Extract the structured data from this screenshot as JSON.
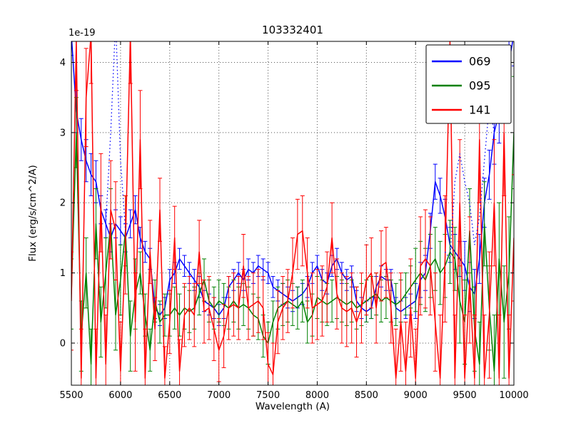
{
  "figure": {
    "title": "103332401",
    "offset_label": "1e-19",
    "xlabel": "Wavelength (A)",
    "ylabel": "Flux (erg/s/cm^2/A)"
  },
  "chart_data": {
    "type": "line",
    "title": "103332401",
    "xlabel": "Wavelength (A)",
    "ylabel": "Flux (erg/s/cm^2/A)",
    "offset_label": "1e-19",
    "xlim": [
      5500,
      10000
    ],
    "ylim": [
      -0.6,
      4.3
    ],
    "xticks": [
      5500,
      6000,
      6500,
      7000,
      7500,
      8000,
      8500,
      9000,
      9500,
      10000
    ],
    "yticks": [
      0,
      1,
      2,
      3,
      4
    ],
    "grid": {
      "on": true,
      "style": "dotted",
      "color": "#555555"
    },
    "legend": {
      "position": "upper right",
      "labels": [
        "069",
        "095",
        "141"
      ]
    },
    "x": [
      5500,
      5550,
      5600,
      5650,
      5700,
      5750,
      5800,
      5850,
      5900,
      5950,
      6000,
      6050,
      6100,
      6150,
      6200,
      6250,
      6300,
      6350,
      6400,
      6450,
      6500,
      6550,
      6600,
      6650,
      6700,
      6750,
      6800,
      6850,
      6900,
      6950,
      7000,
      7050,
      7100,
      7150,
      7200,
      7250,
      7300,
      7350,
      7400,
      7450,
      7500,
      7550,
      7600,
      7650,
      7700,
      7750,
      7800,
      7850,
      7900,
      7950,
      8000,
      8050,
      8100,
      8150,
      8200,
      8250,
      8300,
      8350,
      8400,
      8450,
      8500,
      8550,
      8600,
      8650,
      8700,
      8750,
      8800,
      8850,
      8900,
      8950,
      9000,
      9050,
      9100,
      9150,
      9200,
      9250,
      9300,
      9350,
      9400,
      9450,
      9500,
      9550,
      9600,
      9650,
      9700,
      9750,
      9800,
      9850,
      9900,
      9950,
      10000
    ],
    "series": [
      {
        "name": "069",
        "color": "#0000ff",
        "style": "solid",
        "values": [
          4.4,
          3.3,
          2.9,
          2.6,
          2.4,
          2.3,
          1.9,
          1.7,
          1.5,
          1.7,
          1.6,
          1.5,
          1.7,
          1.9,
          1.5,
          1.3,
          1.2,
          0.5,
          0.4,
          0.5,
          0.9,
          1.0,
          1.2,
          1.1,
          1.0,
          0.9,
          0.8,
          0.6,
          0.55,
          0.5,
          0.4,
          0.5,
          0.8,
          0.9,
          1.0,
          0.9,
          1.05,
          1.0,
          1.1,
          1.05,
          1.0,
          0.8,
          0.75,
          0.7,
          0.65,
          0.6,
          0.65,
          0.7,
          0.8,
          1.0,
          1.1,
          0.9,
          0.85,
          1.1,
          1.2,
          1.0,
          0.9,
          0.95,
          0.6,
          0.5,
          0.45,
          0.5,
          0.8,
          0.95,
          0.9,
          0.9,
          0.5,
          0.45,
          0.5,
          0.55,
          0.6,
          0.9,
          1.0,
          1.6,
          2.3,
          2.1,
          1.8,
          1.4,
          1.3,
          1.2,
          1.1,
          0.8,
          0.7,
          1.2,
          2.0,
          2.4,
          3.0,
          3.3,
          3.6,
          4.0,
          4.4
        ],
        "errors": [
          0.3,
          0.3,
          0.3,
          0.3,
          0.3,
          0.3,
          0.2,
          0.2,
          0.2,
          0.2,
          0.2,
          0.2,
          0.2,
          0.2,
          0.15,
          0.15,
          0.15,
          0.15,
          0.15,
          0.15,
          0.15,
          0.15,
          0.15,
          0.15,
          0.15,
          0.15,
          0.15,
          0.15,
          0.15,
          0.15,
          0.15,
          0.15,
          0.15,
          0.15,
          0.15,
          0.15,
          0.15,
          0.15,
          0.15,
          0.15,
          0.15,
          0.15,
          0.15,
          0.15,
          0.15,
          0.15,
          0.15,
          0.15,
          0.15,
          0.15,
          0.15,
          0.15,
          0.15,
          0.15,
          0.15,
          0.15,
          0.15,
          0.15,
          0.15,
          0.15,
          0.15,
          0.15,
          0.15,
          0.15,
          0.15,
          0.15,
          0.15,
          0.15,
          0.15,
          0.15,
          0.25,
          0.25,
          0.25,
          0.25,
          0.25,
          0.25,
          0.25,
          0.25,
          0.25,
          0.25,
          0.35,
          0.35,
          0.35,
          0.35,
          0.35,
          0.35,
          0.45,
          0.45,
          0.45,
          0.45,
          0.45
        ]
      },
      {
        "name": "095",
        "color": "#008000",
        "style": "solid",
        "values": [
          0.7,
          3.0,
          0.1,
          1.0,
          -0.3,
          1.7,
          0.3,
          1.0,
          1.7,
          0.4,
          0.9,
          1.6,
          0.1,
          0.7,
          1.0,
          0.4,
          -0.1,
          0.6,
          0.3,
          0.4,
          0.4,
          0.5,
          0.4,
          0.5,
          0.45,
          0.5,
          0.7,
          0.9,
          0.6,
          0.5,
          0.6,
          0.55,
          0.5,
          0.6,
          0.5,
          0.55,
          0.5,
          0.4,
          0.35,
          0.1,
          0.0,
          0.3,
          0.5,
          0.55,
          0.6,
          0.55,
          0.5,
          0.6,
          0.3,
          0.4,
          0.65,
          0.6,
          0.55,
          0.6,
          0.65,
          0.6,
          0.55,
          0.6,
          0.5,
          0.55,
          0.6,
          0.65,
          0.7,
          0.6,
          0.65,
          0.6,
          0.55,
          0.6,
          0.7,
          0.8,
          0.9,
          1.0,
          0.9,
          1.1,
          1.2,
          1.0,
          1.1,
          1.3,
          1.2,
          0.6,
          0.3,
          1.6,
          0.2,
          -0.3,
          1.7,
          0.5,
          -0.4,
          1.2,
          0.3,
          1.0,
          3.0
        ],
        "errors": [
          0.5,
          0.5,
          0.5,
          0.5,
          0.5,
          0.5,
          0.5,
          0.5,
          0.5,
          0.5,
          0.5,
          0.5,
          0.5,
          0.5,
          0.3,
          0.3,
          0.3,
          0.3,
          0.3,
          0.3,
          0.3,
          0.3,
          0.3,
          0.3,
          0.3,
          0.3,
          0.3,
          0.3,
          0.3,
          0.3,
          0.3,
          0.3,
          0.3,
          0.3,
          0.3,
          0.3,
          0.3,
          0.3,
          0.3,
          0.3,
          0.3,
          0.3,
          0.3,
          0.3,
          0.3,
          0.3,
          0.3,
          0.3,
          0.3,
          0.3,
          0.3,
          0.3,
          0.3,
          0.3,
          0.3,
          0.3,
          0.3,
          0.3,
          0.3,
          0.3,
          0.3,
          0.3,
          0.3,
          0.3,
          0.3,
          0.3,
          0.3,
          0.3,
          0.3,
          0.3,
          0.45,
          0.45,
          0.45,
          0.45,
          0.45,
          0.45,
          0.45,
          0.45,
          0.45,
          0.6,
          0.6,
          0.6,
          0.6,
          0.6,
          0.6,
          0.6,
          0.8,
          0.8,
          0.8,
          0.8,
          0.8
        ]
      },
      {
        "name": "141",
        "color": "#ff0000",
        "style": "solid",
        "values": [
          0.6,
          4.3,
          -0.5,
          3.5,
          4.4,
          -0.5,
          2.0,
          -0.3,
          1.9,
          1.6,
          -0.4,
          1.4,
          4.4,
          0.3,
          2.9,
          -0.5,
          1.3,
          0.2,
          1.9,
          -0.5,
          0.3,
          1.5,
          -0.4,
          0.4,
          0.5,
          0.4,
          1.3,
          0.45,
          0.5,
          0.2,
          -0.1,
          0.1,
          0.5,
          0.55,
          0.5,
          1.1,
          0.5,
          0.55,
          0.6,
          0.5,
          -0.3,
          -0.45,
          0.3,
          0.5,
          0.6,
          1.0,
          1.55,
          1.6,
          1.0,
          0.5,
          0.55,
          0.6,
          0.8,
          1.5,
          0.7,
          0.5,
          0.45,
          0.5,
          0.3,
          0.5,
          0.9,
          1.0,
          0.5,
          1.1,
          1.15,
          0.5,
          -0.5,
          0.3,
          -0.4,
          0.5,
          -0.5,
          1.1,
          1.2,
          1.1,
          0.3,
          -0.5,
          1.2,
          4.3,
          -0.5,
          2.0,
          -0.5,
          0.9,
          -0.5,
          2.9,
          -0.5,
          0.4,
          2.0,
          -0.5,
          3.0,
          -0.5,
          1.5
        ],
        "errors": [
          0.7,
          0.7,
          0.7,
          0.7,
          0.7,
          0.7,
          0.7,
          0.7,
          0.7,
          0.7,
          0.7,
          0.7,
          0.7,
          0.7,
          0.7,
          0.7,
          0.45,
          0.45,
          0.45,
          0.45,
          0.45,
          0.45,
          0.45,
          0.45,
          0.45,
          0.45,
          0.45,
          0.45,
          0.45,
          0.45,
          0.45,
          0.45,
          0.45,
          0.45,
          0.45,
          0.45,
          0.45,
          0.45,
          0.45,
          0.45,
          0.45,
          0.45,
          0.45,
          0.45,
          0.45,
          0.5,
          0.5,
          0.5,
          0.5,
          0.5,
          0.5,
          0.5,
          0.5,
          0.5,
          0.5,
          0.5,
          0.5,
          0.5,
          0.5,
          0.5,
          0.5,
          0.5,
          0.5,
          0.5,
          0.5,
          0.5,
          0.7,
          0.7,
          0.7,
          0.7,
          0.7,
          0.7,
          0.7,
          0.7,
          0.7,
          0.9,
          0.9,
          0.9,
          0.9,
          0.9,
          0.9,
          0.9,
          0.9,
          0.9,
          0.9,
          0.9,
          0.9,
          0.9,
          0.9,
          0.9,
          0.9
        ]
      }
    ],
    "dotted_overlays": [
      {
        "name": "069-dotted-a",
        "color": "#0000ff",
        "points": [
          [
            5850,
            1.7
          ],
          [
            5900,
            3.0
          ],
          [
            5950,
            4.6
          ],
          [
            6000,
            2.6
          ],
          [
            6050,
            1.6
          ]
        ]
      },
      {
        "name": "069-dotted-b",
        "color": "#0000ff",
        "points": [
          [
            9300,
            1.3
          ],
          [
            9350,
            1.2
          ],
          [
            9400,
            2.3
          ],
          [
            9450,
            2.7
          ],
          [
            9500,
            2.3
          ],
          [
            9550,
            2.0
          ],
          [
            9600,
            1.4
          ],
          [
            9650,
            1.8
          ],
          [
            9700,
            2.6
          ],
          [
            9750,
            3.4
          ],
          [
            9800,
            3.0
          ]
        ]
      }
    ]
  }
}
